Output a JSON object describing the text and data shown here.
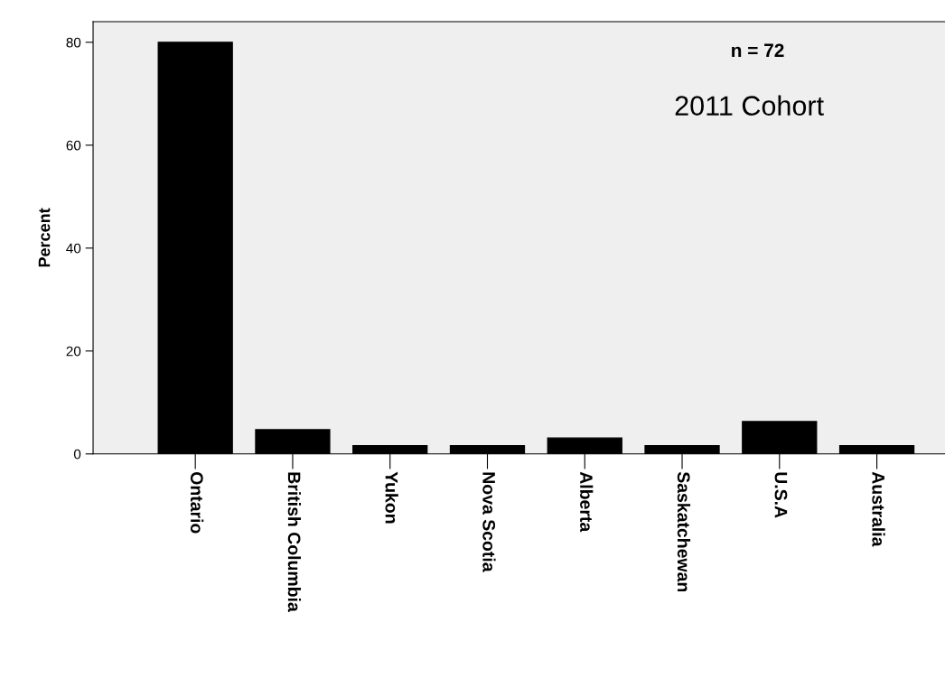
{
  "chart_data": {
    "type": "bar",
    "ylabel": "Percent",
    "categories": [
      "Ontario",
      "British Columbia",
      "Yukon",
      "Nova Scotia",
      "Alberta",
      "Saskatchewan",
      "U.S.A",
      "Australia"
    ],
    "values": [
      80,
      4.7,
      1.6,
      1.6,
      3.1,
      1.6,
      6.3,
      1.6
    ],
    "color": "#000000",
    "ylim": [
      0,
      84
    ],
    "yticks": [
      0,
      20,
      40,
      60,
      80
    ],
    "annotations": [
      "n = 72",
      "2011 Cohort"
    ],
    "grid": false,
    "legend": false
  }
}
